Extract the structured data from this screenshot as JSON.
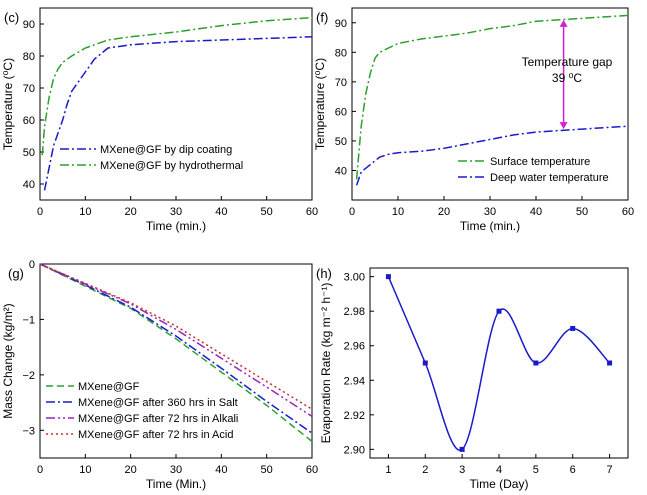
{
  "chart_data": [
    {
      "type": "line",
      "panel_label": "(c)",
      "xlabel": "Time (min.)",
      "ylabel": "Temperature (⁰C)",
      "xlim": [
        0,
        60
      ],
      "ylim": [
        35,
        95
      ],
      "xticks": [
        0,
        10,
        20,
        30,
        40,
        50,
        60
      ],
      "yticks": [
        40,
        50,
        60,
        70,
        80,
        90
      ],
      "legend_position": "bottom-left",
      "series": [
        {
          "name": "MXene@GF by dip coating",
          "color": "#1a1acc",
          "dash": "9 3 2 3",
          "x": [
            1,
            2,
            3,
            4,
            5,
            6,
            7,
            8,
            10,
            12,
            15,
            20,
            30,
            40,
            50,
            60
          ],
          "y": [
            38,
            45,
            52,
            56,
            60,
            65,
            69,
            71,
            75,
            79,
            82.5,
            83.5,
            84.5,
            85,
            85.5,
            86
          ]
        },
        {
          "name": "MXene@GF by hydrothermal",
          "color": "#2ca02c",
          "dash": "9 3 2 3",
          "x": [
            0.5,
            1,
            2,
            3,
            4,
            5,
            7,
            10,
            15,
            20,
            30,
            40,
            50,
            60
          ],
          "y": [
            49,
            58,
            67,
            73,
            76,
            78,
            80,
            82.5,
            85,
            86,
            87.5,
            89.5,
            91,
            92
          ]
        }
      ]
    },
    {
      "type": "line",
      "panel_label": "(f)",
      "xlabel": "Time (min.)",
      "ylabel": "Temperature (⁰C)",
      "xlim": [
        0,
        60
      ],
      "ylim": [
        30,
        95
      ],
      "xticks": [
        0,
        10,
        20,
        30,
        40,
        50,
        60
      ],
      "yticks": [
        40,
        50,
        60,
        70,
        80,
        90
      ],
      "legend_position": "bottom-right",
      "annotation": {
        "line1": "Temperature gap",
        "line2": "39 ⁰C",
        "x": 46,
        "y_top": 91,
        "y_bottom": 54,
        "color": "#d020d0"
      },
      "series": [
        {
          "name": "Surface temperature",
          "color": "#2ca02c",
          "dash": "9 3 2 3",
          "x": [
            1,
            2,
            3,
            4,
            5,
            6,
            8,
            10,
            15,
            20,
            25,
            30,
            35,
            40,
            50,
            60
          ],
          "y": [
            37,
            55,
            66,
            73,
            78,
            80,
            81.5,
            83,
            84.5,
            85.5,
            86.5,
            88,
            89,
            90.5,
            91.5,
            92.5
          ]
        },
        {
          "name": "Deep water temperature",
          "color": "#1a1acc",
          "dash": "9 3 2 3",
          "x": [
            1,
            2,
            4,
            6,
            8,
            10,
            15,
            20,
            25,
            30,
            35,
            40,
            45,
            50,
            55,
            60
          ],
          "y": [
            35,
            39.5,
            42,
            44.5,
            45.5,
            46,
            46.5,
            47.5,
            49,
            50.5,
            52,
            53,
            53.5,
            54,
            54.5,
            55
          ]
        }
      ]
    },
    {
      "type": "line",
      "panel_label": "(g)",
      "xlabel": "Time (Min.)",
      "ylabel": "Mass Change (kg/m²)",
      "xlim": [
        0,
        60
      ],
      "ylim": [
        -3.5,
        0
      ],
      "xticks": [
        0,
        10,
        20,
        30,
        40,
        50,
        60
      ],
      "yticks": [
        0,
        -1,
        -2,
        -3
      ],
      "legend_position": "bottom-left",
      "series": [
        {
          "name": "MXene@GF",
          "color": "#2ca02c",
          "dash": "7 4",
          "x": [
            0,
            10,
            20,
            30,
            40,
            50,
            60
          ],
          "y": [
            0,
            -0.4,
            -0.8,
            -1.35,
            -1.95,
            -2.55,
            -3.2
          ]
        },
        {
          "name": "MXene@GF after 360 hrs in Salt",
          "color": "#1a1acc",
          "dash": "9 3 2 3",
          "x": [
            0,
            10,
            20,
            30,
            40,
            50,
            60
          ],
          "y": [
            0,
            -0.38,
            -0.78,
            -1.3,
            -1.88,
            -2.48,
            -3.05
          ]
        },
        {
          "name": "MXene@GF after 72 hrs in Alkali",
          "color": "#a020c0",
          "dash": "9 3 2 3 2 3",
          "x": [
            0,
            10,
            20,
            30,
            40,
            50,
            60
          ],
          "y": [
            0,
            -0.36,
            -0.72,
            -1.18,
            -1.7,
            -2.22,
            -2.75
          ]
        },
        {
          "name": "MXene@GF after 72 hrs in Acid",
          "color": "#c0302a",
          "dash": "2 3",
          "x": [
            0,
            10,
            20,
            30,
            40,
            50,
            60
          ],
          "y": [
            0,
            -0.35,
            -0.7,
            -1.12,
            -1.62,
            -2.12,
            -2.62
          ]
        }
      ]
    },
    {
      "type": "line",
      "panel_label": "(h)",
      "xlabel": "Time (Day)",
      "ylabel": "Evaporation Rate (kg m⁻² h⁻¹)",
      "xlim": [
        0.5,
        7.5
      ],
      "ylim": [
        2.895,
        3.005
      ],
      "xticks": [
        1,
        2,
        3,
        4,
        5,
        6,
        7
      ],
      "yticks": [
        2.9,
        2.92,
        2.94,
        2.96,
        2.98,
        3.0
      ],
      "ytick_labels": [
        "2.90",
        "2.92",
        "2.94",
        "2.96",
        "2.98",
        "3.00"
      ],
      "legend_position": "none",
      "series": [
        {
          "name": "",
          "color": "#1a1acc",
          "smooth": true,
          "markers": true,
          "x": [
            1,
            2,
            3,
            4,
            5,
            6,
            7
          ],
          "y": [
            3.0,
            2.95,
            2.9,
            2.98,
            2.95,
            2.97,
            2.95
          ]
        }
      ]
    }
  ]
}
